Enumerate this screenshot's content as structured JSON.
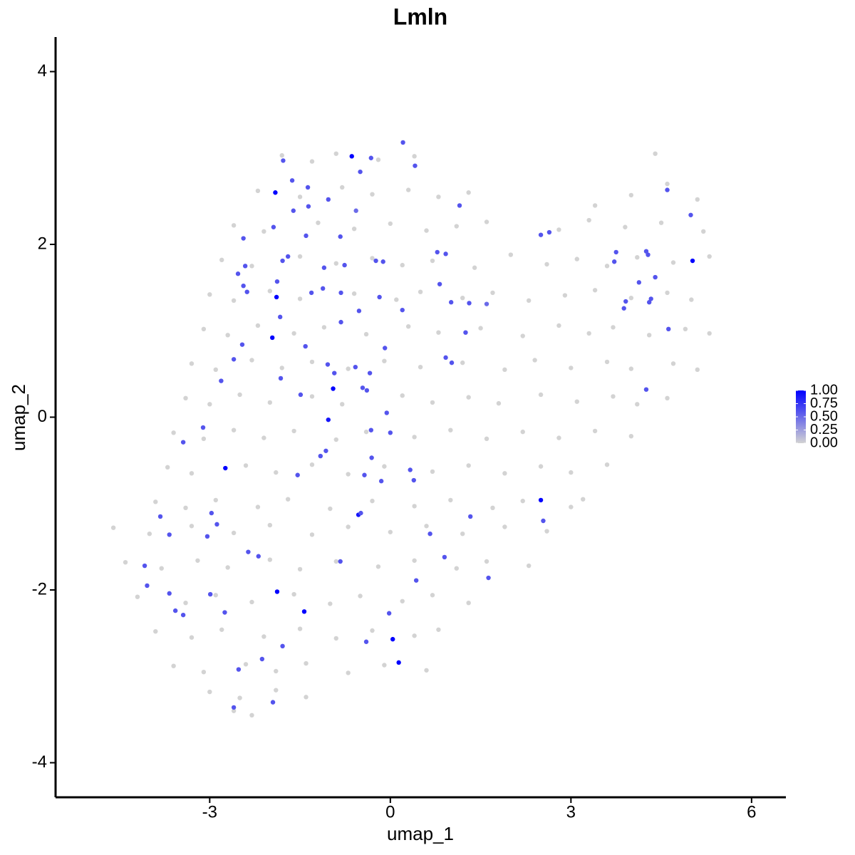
{
  "chart_data": {
    "type": "scatter",
    "title": "Lmln",
    "x_label": "umap_1",
    "y_label": "umap_2",
    "xlim": [
      -5.56,
      6.57
    ],
    "ylim": [
      -4.4,
      4.4
    ],
    "xticks": [
      -3,
      0,
      3,
      6
    ],
    "yticks": [
      -4,
      -2,
      0,
      2,
      4
    ],
    "low_color": "#d3d3d3",
    "high_color": "#0000ff",
    "colorbar": {
      "lim": [
        0,
        1
      ],
      "ticks": [
        {
          "value": 0,
          "label": "0.00"
        },
        {
          "value": 0.25,
          "label": "0.25"
        },
        {
          "value": 0.5,
          "label": "0.50"
        },
        {
          "value": 0.75,
          "label": "0.75"
        },
        {
          "value": 1,
          "label": "1.00"
        }
      ]
    },
    "points": [
      [
        -1.8,
        3.03,
        0
      ],
      [
        -1.3,
        2.96,
        0
      ],
      [
        -0.9,
        3.05,
        0
      ],
      [
        -0.2,
        2.98,
        0
      ],
      [
        0.4,
        3.02,
        0
      ],
      [
        4.4,
        3.05,
        0
      ],
      [
        -2.2,
        2.62,
        0
      ],
      [
        -1.5,
        2.55,
        0
      ],
      [
        -0.8,
        2.66,
        0
      ],
      [
        -0.3,
        2.58,
        0
      ],
      [
        0.3,
        2.63,
        0
      ],
      [
        0.8,
        2.55,
        0
      ],
      [
        1.3,
        2.6,
        0
      ],
      [
        3.4,
        2.45,
        0
      ],
      [
        4.0,
        2.57,
        0
      ],
      [
        4.6,
        2.7,
        0
      ],
      [
        5.1,
        2.52,
        0
      ],
      [
        -2.6,
        2.22,
        0
      ],
      [
        -2.1,
        2.15,
        0
      ],
      [
        -1.2,
        2.25,
        0
      ],
      [
        -0.6,
        2.18,
        0
      ],
      [
        0.0,
        2.24,
        0
      ],
      [
        0.6,
        2.16,
        0
      ],
      [
        1.1,
        2.21,
        0
      ],
      [
        1.6,
        2.26,
        0
      ],
      [
        2.8,
        2.17,
        0
      ],
      [
        3.3,
        2.28,
        0
      ],
      [
        3.9,
        2.2,
        0
      ],
      [
        4.5,
        2.25,
        0
      ],
      [
        5.2,
        2.15,
        0
      ],
      [
        -2.8,
        1.82,
        0
      ],
      [
        -2.3,
        1.75,
        0
      ],
      [
        -1.5,
        1.86,
        0
      ],
      [
        -0.9,
        1.78,
        0
      ],
      [
        -0.3,
        1.84,
        0
      ],
      [
        0.2,
        1.76,
        0
      ],
      [
        0.7,
        1.81,
        0
      ],
      [
        1.4,
        1.73,
        0
      ],
      [
        2.0,
        1.88,
        0
      ],
      [
        2.6,
        1.77,
        0
      ],
      [
        3.1,
        1.83,
        0
      ],
      [
        3.6,
        1.75,
        0
      ],
      [
        4.1,
        1.85,
        0
      ],
      [
        4.7,
        1.79,
        0
      ],
      [
        5.3,
        1.86,
        0
      ],
      [
        -3.0,
        1.42,
        0
      ],
      [
        -2.6,
        1.35,
        0
      ],
      [
        -2.0,
        1.46,
        0
      ],
      [
        -1.5,
        1.37,
        0
      ],
      [
        -0.6,
        1.43,
        0
      ],
      [
        0.1,
        1.36,
        0
      ],
      [
        0.5,
        1.45,
        0
      ],
      [
        1.2,
        1.38,
        0
      ],
      [
        1.7,
        1.44,
        0
      ],
      [
        2.3,
        1.35,
        0
      ],
      [
        2.9,
        1.41,
        0
      ],
      [
        3.4,
        1.47,
        0
      ],
      [
        4.0,
        1.38,
        0
      ],
      [
        4.6,
        1.44,
        0
      ],
      [
        5.0,
        1.36,
        0
      ],
      [
        -3.1,
        1.02,
        0
      ],
      [
        -2.7,
        0.95,
        0
      ],
      [
        -2.2,
        1.06,
        0
      ],
      [
        -1.6,
        0.97,
        0
      ],
      [
        -1.1,
        1.04,
        0
      ],
      [
        -0.4,
        0.96,
        0
      ],
      [
        0.3,
        1.05,
        0
      ],
      [
        0.8,
        0.98,
        0
      ],
      [
        1.5,
        1.03,
        0
      ],
      [
        2.2,
        0.94,
        0
      ],
      [
        2.8,
        1.06,
        0
      ],
      [
        3.3,
        0.97,
        0
      ],
      [
        3.7,
        1.04,
        0
      ],
      [
        4.3,
        0.95,
        0
      ],
      [
        4.9,
        1.02,
        0
      ],
      [
        5.3,
        0.97,
        0
      ],
      [
        -3.3,
        0.62,
        0
      ],
      [
        -2.9,
        0.55,
        0
      ],
      [
        -2.3,
        0.66,
        0
      ],
      [
        -1.8,
        0.57,
        0
      ],
      [
        -1.3,
        0.64,
        0
      ],
      [
        -0.7,
        0.56,
        0
      ],
      [
        -0.1,
        0.65,
        0
      ],
      [
        0.5,
        0.58,
        0
      ],
      [
        1.2,
        0.63,
        0
      ],
      [
        1.9,
        0.55,
        0
      ],
      [
        2.4,
        0.66,
        0
      ],
      [
        3.0,
        0.57,
        0
      ],
      [
        3.6,
        0.64,
        0
      ],
      [
        4.0,
        0.56,
        0
      ],
      [
        4.7,
        0.62,
        0
      ],
      [
        5.1,
        0.55,
        0
      ],
      [
        -3.4,
        0.22,
        0
      ],
      [
        -3.0,
        0.15,
        0
      ],
      [
        -2.5,
        0.26,
        0
      ],
      [
        -2.0,
        0.17,
        0
      ],
      [
        -1.3,
        0.24,
        0
      ],
      [
        -0.8,
        0.15,
        0
      ],
      [
        0.2,
        0.25,
        0
      ],
      [
        0.7,
        0.17,
        0
      ],
      [
        1.3,
        0.23,
        0
      ],
      [
        1.8,
        0.16,
        0
      ],
      [
        2.5,
        0.26,
        0
      ],
      [
        3.1,
        0.18,
        0
      ],
      [
        3.7,
        0.24,
        0
      ],
      [
        4.1,
        0.15,
        0
      ],
      [
        4.6,
        0.22,
        0
      ],
      [
        -3.6,
        -0.18,
        0
      ],
      [
        -3.1,
        -0.25,
        0
      ],
      [
        -2.6,
        -0.15,
        0
      ],
      [
        -2.1,
        -0.24,
        0
      ],
      [
        -1.6,
        -0.16,
        0
      ],
      [
        -0.9,
        -0.26,
        0
      ],
      [
        -0.4,
        -0.17,
        0
      ],
      [
        0.4,
        -0.23,
        0
      ],
      [
        1.0,
        -0.15,
        0
      ],
      [
        1.6,
        -0.25,
        0
      ],
      [
        2.2,
        -0.17,
        0
      ],
      [
        2.8,
        -0.24,
        0
      ],
      [
        3.4,
        -0.16,
        0
      ],
      [
        4.0,
        -0.22,
        0
      ],
      [
        -3.7,
        -0.58,
        0
      ],
      [
        -3.3,
        -0.65,
        0
      ],
      [
        -2.4,
        -0.56,
        0
      ],
      [
        -1.9,
        -0.64,
        0
      ],
      [
        -1.3,
        -0.55,
        0
      ],
      [
        -0.7,
        -0.66,
        0
      ],
      [
        -0.1,
        -0.57,
        0
      ],
      [
        0.7,
        -0.63,
        0
      ],
      [
        1.3,
        -0.56,
        0
      ],
      [
        1.9,
        -0.65,
        0
      ],
      [
        2.5,
        -0.57,
        0
      ],
      [
        3.0,
        -0.64,
        0
      ],
      [
        3.6,
        -0.55,
        0
      ],
      [
        -3.9,
        -0.98,
        0
      ],
      [
        -3.4,
        -1.05,
        0
      ],
      [
        -2.9,
        -0.96,
        0
      ],
      [
        -2.2,
        -1.04,
        0
      ],
      [
        -1.7,
        -0.95,
        0
      ],
      [
        -1.0,
        -1.06,
        0
      ],
      [
        -0.3,
        -0.97,
        0
      ],
      [
        0.4,
        -1.03,
        0
      ],
      [
        1.0,
        -0.96,
        0
      ],
      [
        1.7,
        -1.05,
        0
      ],
      [
        2.2,
        -0.97,
        0
      ],
      [
        3.0,
        -1.04,
        0
      ],
      [
        3.2,
        -0.95,
        0
      ],
      [
        -4.6,
        -1.28,
        0
      ],
      [
        -4.0,
        -1.35,
        0
      ],
      [
        -3.3,
        -1.26,
        0
      ],
      [
        -2.6,
        -1.34,
        0
      ],
      [
        -2.0,
        -1.25,
        0
      ],
      [
        -1.3,
        -1.36,
        0
      ],
      [
        -0.7,
        -1.27,
        0
      ],
      [
        0.0,
        -1.33,
        0
      ],
      [
        0.6,
        -1.26,
        0
      ],
      [
        1.2,
        -1.35,
        0
      ],
      [
        1.9,
        -1.27,
        0
      ],
      [
        2.6,
        -1.32,
        0
      ],
      [
        -4.4,
        -1.68,
        0
      ],
      [
        -3.8,
        -1.75,
        0
      ],
      [
        -3.2,
        -1.66,
        0
      ],
      [
        -2.7,
        -1.74,
        0
      ],
      [
        -2.0,
        -1.65,
        0
      ],
      [
        -1.5,
        -1.76,
        0
      ],
      [
        -0.9,
        -1.67,
        0
      ],
      [
        -0.2,
        -1.73,
        0
      ],
      [
        0.4,
        -1.66,
        0
      ],
      [
        1.1,
        -1.75,
        0
      ],
      [
        1.6,
        -1.67,
        0
      ],
      [
        2.3,
        -1.72,
        0
      ],
      [
        -4.2,
        -2.08,
        0
      ],
      [
        -3.4,
        -2.15,
        0
      ],
      [
        -2.9,
        -2.06,
        0
      ],
      [
        -2.3,
        -2.14,
        0
      ],
      [
        -1.6,
        -2.05,
        0
      ],
      [
        -1.0,
        -2.16,
        0
      ],
      [
        -0.5,
        -2.07,
        0
      ],
      [
        0.2,
        -2.13,
        0
      ],
      [
        0.7,
        -2.06,
        0
      ],
      [
        1.3,
        -2.15,
        0
      ],
      [
        -3.9,
        -2.48,
        0
      ],
      [
        -3.3,
        -2.55,
        0
      ],
      [
        -2.8,
        -2.46,
        0
      ],
      [
        -2.1,
        -2.54,
        0
      ],
      [
        -1.5,
        -2.45,
        0
      ],
      [
        -0.9,
        -2.56,
        0
      ],
      [
        -0.3,
        -2.47,
        0
      ],
      [
        0.4,
        -2.53,
        0
      ],
      [
        0.8,
        -2.46,
        0
      ],
      [
        -3.6,
        -2.88,
        0
      ],
      [
        -3.1,
        -2.95,
        0
      ],
      [
        -2.4,
        -2.86,
        0
      ],
      [
        -1.9,
        -2.94,
        0
      ],
      [
        -1.4,
        -2.85,
        0
      ],
      [
        -0.7,
        -2.96,
        0
      ],
      [
        -0.1,
        -2.87,
        0
      ],
      [
        0.6,
        -2.93,
        0
      ],
      [
        -3.0,
        -3.18,
        0
      ],
      [
        -2.5,
        -3.25,
        0
      ],
      [
        -1.9,
        -3.16,
        0
      ],
      [
        -1.4,
        -3.24,
        0
      ],
      [
        -2.3,
        -3.45,
        0
      ],
      [
        -2.6,
        -3.4,
        0
      ],
      [
        0.21,
        3.18,
        0.6
      ],
      [
        -0.64,
        3.02,
        1
      ],
      [
        -1.91,
        2.6,
        1
      ],
      [
        5.02,
        1.81,
        1
      ],
      [
        -1.89,
        1.39,
        1
      ],
      [
        -1.96,
        0.92,
        1
      ],
      [
        -0.95,
        0.33,
        1
      ],
      [
        -1.03,
        -0.03,
        0.9
      ],
      [
        -2.74,
        -0.59,
        1
      ],
      [
        2.5,
        -0.96,
        1
      ],
      [
        -0.53,
        -1.13,
        0.9
      ],
      [
        -1.88,
        -2.02,
        1
      ],
      [
        -1.43,
        -2.25,
        1
      ],
      [
        0.04,
        -2.57,
        1
      ],
      [
        0.14,
        -2.84,
        1
      ],
      [
        -1.78,
        2.97,
        0.6
      ],
      [
        -0.32,
        3.0,
        0.6
      ],
      [
        0.41,
        2.91,
        0.6
      ],
      [
        -0.5,
        2.84,
        0.6
      ],
      [
        -1.63,
        2.74,
        0.6
      ],
      [
        -1.37,
        2.66,
        0.6
      ],
      [
        -1.03,
        2.52,
        0.6
      ],
      [
        -1.61,
        2.39,
        0.6
      ],
      [
        -1.36,
        2.44,
        0.6
      ],
      [
        1.15,
        2.45,
        0.6
      ],
      [
        -0.57,
        2.39,
        0.5
      ],
      [
        -1.94,
        2.2,
        0.6
      ],
      [
        -0.83,
        2.09,
        0.6
      ],
      [
        -2.44,
        2.07,
        0.6
      ],
      [
        -1.4,
        2.1,
        0.6
      ],
      [
        -1.79,
        1.81,
        0.6
      ],
      [
        -1.7,
        1.86,
        0.6
      ],
      [
        0.78,
        1.91,
        0.6
      ],
      [
        0.92,
        1.89,
        0.6
      ],
      [
        -0.24,
        1.81,
        0.6
      ],
      [
        -0.12,
        1.8,
        0.6
      ],
      [
        -0.76,
        1.76,
        0.6
      ],
      [
        -2.41,
        1.75,
        0.6
      ],
      [
        -1.1,
        1.73,
        0.6
      ],
      [
        -2.53,
        1.66,
        0.6
      ],
      [
        -2.44,
        1.52,
        0.6
      ],
      [
        -1.88,
        1.57,
        0.6
      ],
      [
        -2.38,
        1.45,
        0.6
      ],
      [
        -1.31,
        1.44,
        0.6
      ],
      [
        -1.12,
        1.49,
        0.6
      ],
      [
        0.82,
        1.54,
        0.6
      ],
      [
        1.01,
        1.33,
        0.6
      ],
      [
        1.31,
        1.32,
        0.6
      ],
      [
        1.6,
        1.31,
        0.5
      ],
      [
        -0.52,
        1.23,
        0.6
      ],
      [
        -0.18,
        1.39,
        0.6
      ],
      [
        -0.82,
        1.44,
        0.6
      ],
      [
        0.2,
        1.24,
        0.6
      ],
      [
        -1.83,
        1.16,
        0.6
      ],
      [
        -0.82,
        1.1,
        0.6
      ],
      [
        1.25,
        0.98,
        0.6
      ],
      [
        -2.46,
        0.84,
        0.6
      ],
      [
        -1.41,
        0.82,
        0.6
      ],
      [
        -0.09,
        0.8,
        0.6
      ],
      [
        0.92,
        0.69,
        0.6
      ],
      [
        -2.6,
        0.67,
        0.6
      ],
      [
        1.02,
        0.63,
        0.6
      ],
      [
        -1.04,
        0.61,
        0.6
      ],
      [
        -0.58,
        0.58,
        0.6
      ],
      [
        -0.34,
        0.51,
        0.6
      ],
      [
        -0.93,
        0.51,
        0.6
      ],
      [
        -2.81,
        0.42,
        0.6
      ],
      [
        -1.82,
        0.45,
        0.6
      ],
      [
        -0.46,
        0.34,
        0.6
      ],
      [
        -0.39,
        0.31,
        0.6
      ],
      [
        -1.49,
        0.26,
        0.6
      ],
      [
        -3.11,
        -0.12,
        0.6
      ],
      [
        -3.44,
        -0.29,
        0.6
      ],
      [
        -0.32,
        -0.15,
        0.6
      ],
      [
        0.0,
        -0.18,
        0.6
      ],
      [
        -0.06,
        0.05,
        0.6
      ],
      [
        -1.07,
        -0.39,
        0.6
      ],
      [
        -1.16,
        -0.45,
        0.6
      ],
      [
        -0.31,
        -0.47,
        0.6
      ],
      [
        -1.54,
        -0.67,
        0.6
      ],
      [
        -0.43,
        -0.67,
        0.6
      ],
      [
        0.33,
        -0.61,
        0.6
      ],
      [
        0.39,
        -0.73,
        0.6
      ],
      [
        -0.15,
        -0.74,
        0.6
      ],
      [
        -3.82,
        -1.15,
        0.6
      ],
      [
        -2.97,
        -1.11,
        0.6
      ],
      [
        -2.88,
        -1.24,
        0.6
      ],
      [
        -0.49,
        -1.11,
        0.6
      ],
      [
        1.33,
        -1.15,
        0.6
      ],
      [
        2.54,
        -1.2,
        0.6
      ],
      [
        -3.67,
        -1.36,
        0.6
      ],
      [
        -3.04,
        -1.38,
        0.6
      ],
      [
        0.66,
        -1.35,
        0.6
      ],
      [
        -2.36,
        -1.56,
        0.6
      ],
      [
        -2.19,
        -1.61,
        0.6
      ],
      [
        0.9,
        -1.62,
        0.6
      ],
      [
        -0.83,
        -1.67,
        0.6
      ],
      [
        -4.08,
        -1.72,
        0.6
      ],
      [
        -4.04,
        -1.95,
        0.6
      ],
      [
        -3.67,
        -2.04,
        0.6
      ],
      [
        -2.99,
        -2.05,
        0.6
      ],
      [
        0.43,
        -1.89,
        0.6
      ],
      [
        1.63,
        -1.86,
        0.6
      ],
      [
        -3.57,
        -2.24,
        0.6
      ],
      [
        -3.44,
        -2.29,
        0.6
      ],
      [
        -2.75,
        -2.26,
        0.6
      ],
      [
        -0.02,
        -2.27,
        0.6
      ],
      [
        -1.79,
        -2.65,
        0.6
      ],
      [
        -0.4,
        -2.6,
        0.6
      ],
      [
        -2.13,
        -2.8,
        0.6
      ],
      [
        -2.52,
        -2.92,
        0.6
      ],
      [
        -1.95,
        -3.3,
        0.6
      ],
      [
        -2.6,
        -3.36,
        0.6
      ],
      [
        4.6,
        2.63,
        0.6
      ],
      [
        4.99,
        2.34,
        0.6
      ],
      [
        2.5,
        2.11,
        0.6
      ],
      [
        2.64,
        2.14,
        0.6
      ],
      [
        3.75,
        1.91,
        0.6
      ],
      [
        3.72,
        1.8,
        0.6
      ],
      [
        4.25,
        1.92,
        0.6
      ],
      [
        4.28,
        1.88,
        0.6
      ],
      [
        4.4,
        1.62,
        0.6
      ],
      [
        4.13,
        1.56,
        0.6
      ],
      [
        3.91,
        1.34,
        0.6
      ],
      [
        3.88,
        1.26,
        0.6
      ],
      [
        4.33,
        1.37,
        0.6
      ],
      [
        4.3,
        1.33,
        0.6
      ],
      [
        4.62,
        1.02,
        0.6
      ],
      [
        4.25,
        0.32,
        0.6
      ]
    ]
  }
}
